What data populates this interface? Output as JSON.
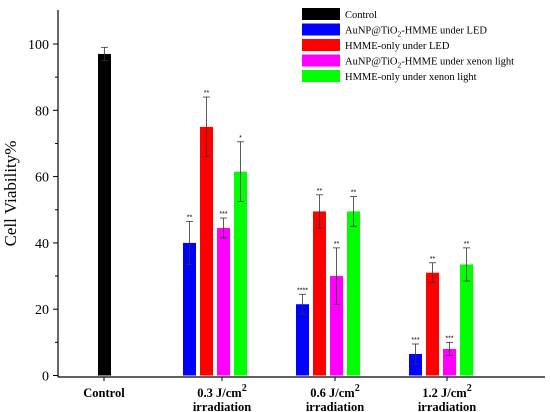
{
  "chart_data": {
    "type": "bar",
    "ylabel": "Cell Viability%",
    "ylim": [
      0,
      110
    ],
    "yticks": [
      0,
      20,
      40,
      60,
      80,
      100
    ],
    "groups": [
      {
        "label": [
          "Control"
        ]
      },
      {
        "label": [
          "0.3 J/cm",
          "2",
          "irradiation"
        ]
      },
      {
        "label": [
          "0.6 J/cm",
          "2",
          "irradiation"
        ]
      },
      {
        "label": [
          "1.2 J/cm",
          "2",
          "irradiation"
        ]
      }
    ],
    "series": [
      {
        "name": "Control",
        "color": "#000000",
        "values": [
          97,
          null,
          null,
          null
        ],
        "errors": [
          2,
          null,
          null,
          null
        ],
        "sig": [
          "",
          null,
          null,
          null
        ]
      },
      {
        "name": "AuNP@TiO2-HMME under LED",
        "color": "#0000ff",
        "values": [
          null,
          40,
          21.5,
          6.5
        ],
        "errors": [
          null,
          6.5,
          3,
          3
        ],
        "sig": [
          null,
          "**",
          "****",
          "***"
        ]
      },
      {
        "name": "HMME-only under LED",
        "color": "#ff0000",
        "values": [
          null,
          75,
          49.5,
          31
        ],
        "errors": [
          null,
          9,
          5,
          3
        ],
        "sig": [
          null,
          "**",
          "**",
          "**"
        ]
      },
      {
        "name": "AuNP@TiO2-HMME under xenon light",
        "color": "#ff00ff",
        "values": [
          null,
          44.5,
          30,
          8
        ],
        "errors": [
          null,
          3,
          8.5,
          2
        ],
        "sig": [
          null,
          "***",
          "**",
          "***"
        ]
      },
      {
        "name": "HMME-only under xenon light",
        "color": "#00ff00",
        "values": [
          null,
          61.5,
          49.5,
          33.5
        ],
        "errors": [
          null,
          9,
          4.5,
          5
        ],
        "sig": [
          null,
          "*",
          "**",
          "**"
        ]
      }
    ],
    "legend": {
      "position": "top-right",
      "entries": [
        {
          "parts": [
            {
              "t": "Control"
            }
          ],
          "color": "#000000"
        },
        {
          "parts": [
            {
              "t": "AuNP@TiO"
            },
            {
              "t": "2",
              "sub": true
            },
            {
              "t": "-HMME under LED"
            }
          ],
          "color": "#0000ff"
        },
        {
          "parts": [
            {
              "t": "HMME-only under LED"
            }
          ],
          "color": "#ff0000"
        },
        {
          "parts": [
            {
              "t": "AuNP@TiO"
            },
            {
              "t": "2",
              "sub": true
            },
            {
              "t": "-HMME under xenon light"
            }
          ],
          "color": "#ff00ff"
        },
        {
          "parts": [
            {
              "t": "HMME-only under xenon light"
            }
          ],
          "color": "#00ff00"
        }
      ]
    }
  }
}
